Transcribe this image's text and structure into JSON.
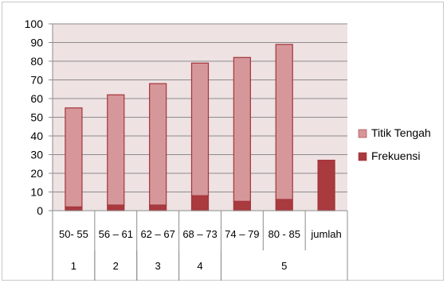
{
  "chart_data": {
    "type": "bar",
    "stacked": true,
    "categories": [
      "50- 55",
      "56 – 61",
      "62 – 67",
      "68 – 73",
      "74 – 79",
      "80 - 85",
      "jumlah"
    ],
    "group_labels": [
      {
        "label": "1",
        "span": [
          0,
          0
        ]
      },
      {
        "label": "2",
        "span": [
          1,
          1
        ]
      },
      {
        "label": "3",
        "span": [
          2,
          2
        ]
      },
      {
        "label": "4",
        "span": [
          3,
          3
        ]
      },
      {
        "label": "5",
        "span": [
          4,
          6
        ]
      }
    ],
    "series": [
      {
        "name": "Frekuensi",
        "color": "#a93a3e",
        "values": [
          2,
          3,
          3,
          8,
          5,
          6,
          27
        ]
      },
      {
        "name": "Titik Tengah",
        "color": "#d5979a",
        "values": [
          53,
          59,
          65,
          71,
          77,
          83,
          0
        ]
      }
    ],
    "legend_order": [
      "Titik Tengah",
      "Frekuensi"
    ],
    "legend_position": "right",
    "ylim": [
      0,
      100
    ],
    "yticks": [
      0,
      10,
      20,
      30,
      40,
      50,
      60,
      70,
      80,
      90,
      100
    ],
    "grid": true,
    "plot_background": "#eee2e3",
    "title": "",
    "xlabel": "",
    "ylabel": ""
  }
}
